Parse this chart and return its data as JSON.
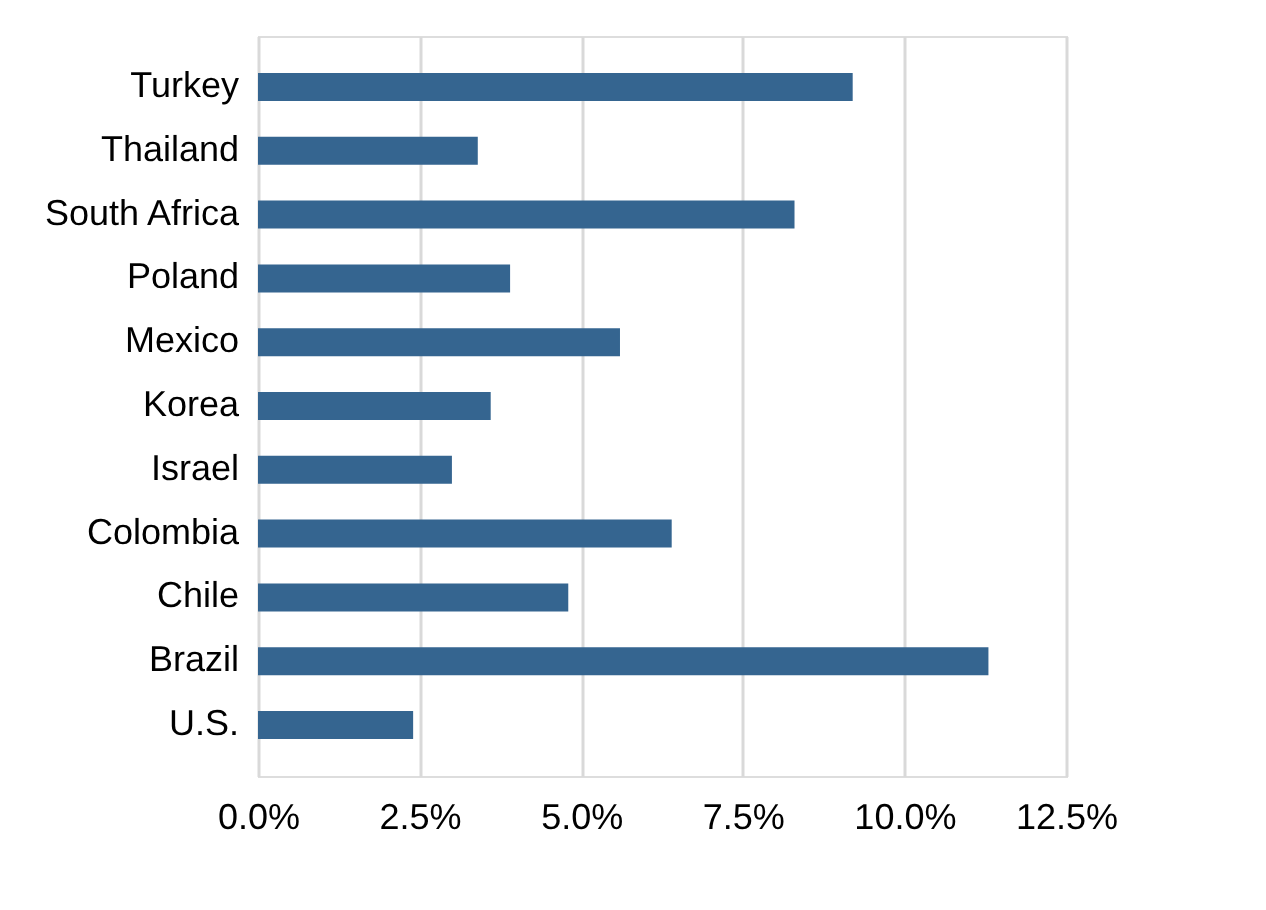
{
  "chart_data": {
    "type": "bar",
    "orientation": "horizontal",
    "categories": [
      "Turkey",
      "Thailand",
      "South Africa",
      "Poland",
      "Mexico",
      "Korea",
      "Israel",
      "Colombia",
      "Chile",
      "Brazil",
      "U.S."
    ],
    "values": [
      9.2,
      3.4,
      8.3,
      3.9,
      5.6,
      3.6,
      3.0,
      6.4,
      4.8,
      11.3,
      2.4
    ],
    "color": "#356590",
    "xlim": [
      0,
      12.5
    ],
    "xticks": [
      {
        "value": 0,
        "label": "0.0%"
      },
      {
        "value": 2.5,
        "label": "2.5%"
      },
      {
        "value": 5,
        "label": "5.0%"
      },
      {
        "value": 7.5,
        "label": "7.5%"
      },
      {
        "value": 10,
        "label": "10.0%"
      },
      {
        "value": 12.5,
        "label": "12.5%"
      }
    ],
    "grid": "x"
  }
}
